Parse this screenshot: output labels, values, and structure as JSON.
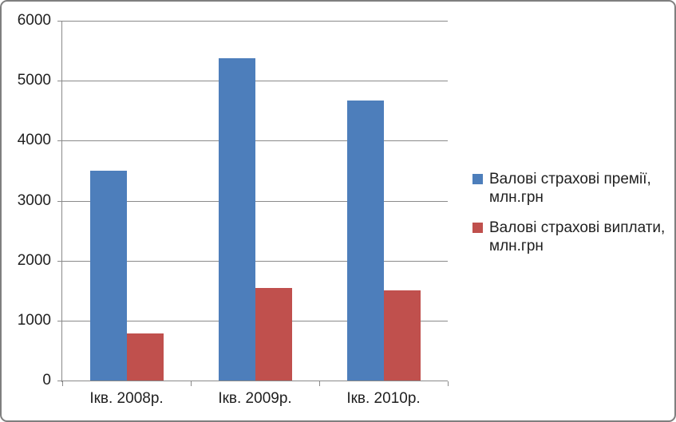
{
  "frame": {
    "background": "#ffffff",
    "border_color": "#7f7f7f"
  },
  "colors": {
    "series_premiums": "#4d7ebb",
    "series_payments": "#c0504d",
    "gridline": "#8a8a8a",
    "text": "#1f1f1f"
  },
  "chart_data": {
    "type": "bar",
    "title": "",
    "xlabel": "",
    "ylabel": "",
    "categories": [
      "Ікв. 2008р.",
      "Ікв. 2009р.",
      "Ікв. 2010р."
    ],
    "series": [
      {
        "name": "Валові страхові премії, млн.грн",
        "color": "#4d7ebb",
        "values": [
          3500,
          5370,
          4670
        ]
      },
      {
        "name": "Валові страхові виплати, млн.грн",
        "color": "#c0504d",
        "values": [
          780,
          1550,
          1500
        ]
      }
    ],
    "ylim": [
      0,
      6000
    ],
    "ytick_step": 1000,
    "yticks": [
      0,
      1000,
      2000,
      3000,
      4000,
      5000,
      6000
    ],
    "grid": true,
    "legend_position": "right",
    "legend": [
      {
        "label_line1": "Валові страхові премії,",
        "label_line2": "млн.грн",
        "color": "#4d7ebb",
        "key": "premiums"
      },
      {
        "label_line1": "Валові страхові виплати,",
        "label_line2": "млн.грн",
        "color": "#c0504d",
        "key": "payments"
      }
    ]
  }
}
